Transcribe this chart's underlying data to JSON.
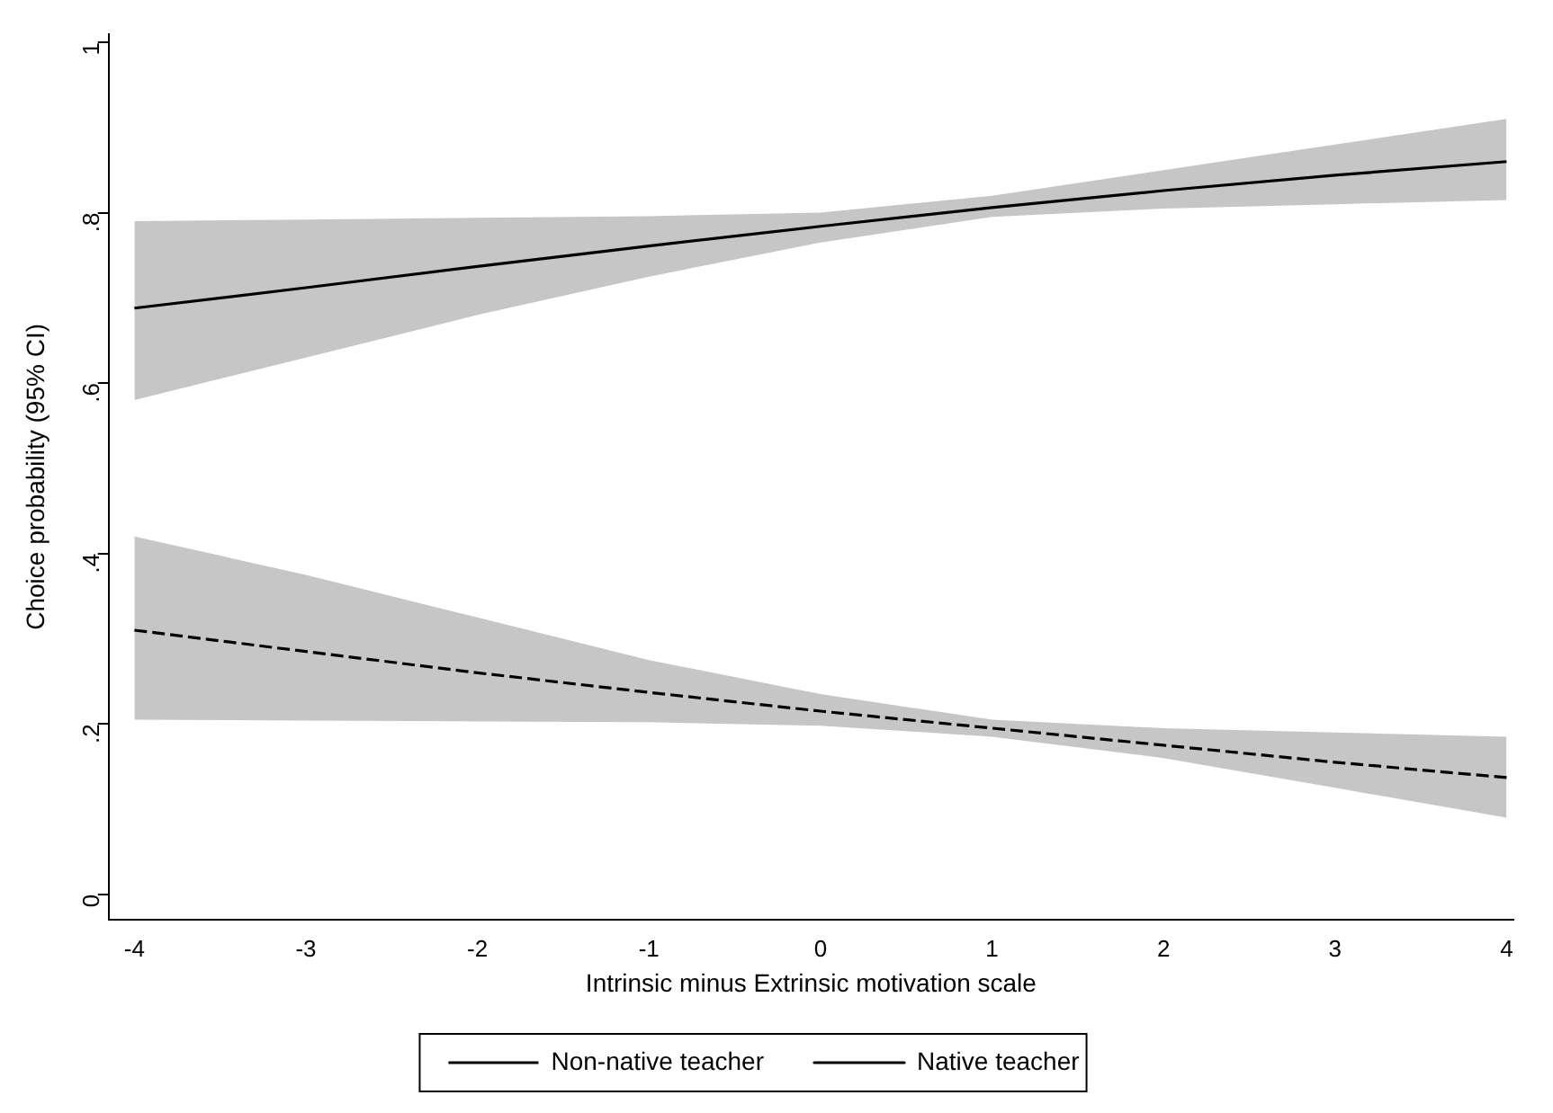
{
  "chart_data": {
    "type": "line",
    "xlabel": "Intrinsic minus Extrinsic motivation scale",
    "ylabel": "Choice probability (95% CI)",
    "x": [
      -4,
      -3,
      -2,
      -1,
      0,
      1,
      2,
      3,
      4
    ],
    "series": [
      {
        "name": "Non-native teacher",
        "color": "#000000",
        "line_style": "dashed",
        "values": [
          0.31,
          0.285,
          0.26,
          0.237,
          0.215,
          0.195,
          0.175,
          0.155,
          0.137
        ],
        "lower": [
          0.205,
          0.204,
          0.203,
          0.202,
          0.198,
          0.185,
          0.16,
          0.125,
          0.09
        ],
        "upper": [
          0.42,
          0.375,
          0.325,
          0.275,
          0.235,
          0.205,
          0.195,
          0.19,
          0.185
        ]
      },
      {
        "name": "Native teacher",
        "color": "#000000",
        "line_style": "solid",
        "values": [
          0.688,
          0.712,
          0.737,
          0.761,
          0.784,
          0.806,
          0.826,
          0.844,
          0.86
        ],
        "lower": [
          0.58,
          0.63,
          0.68,
          0.725,
          0.765,
          0.795,
          0.805,
          0.81,
          0.815
        ],
        "upper": [
          0.79,
          0.792,
          0.794,
          0.796,
          0.8,
          0.82,
          0.85,
          0.88,
          0.91
        ]
      }
    ],
    "xlim": [
      -4.15,
      4.04
    ],
    "xticks": [
      -4,
      -3,
      -2,
      -1,
      0,
      1,
      2,
      3,
      4
    ],
    "ylim": [
      -0.03,
      1.01
    ],
    "yticks": [
      {
        "value": 0,
        "label": "0"
      },
      {
        "value": 0.2,
        "label": ".2"
      },
      {
        "value": 0.4,
        "label": ".4"
      },
      {
        "value": 0.6,
        "label": ".6"
      },
      {
        "value": 0.8,
        "label": ".8"
      },
      {
        "value": 1,
        "label": "1"
      }
    ],
    "grid": false,
    "legend": "bottom",
    "marker": "none"
  }
}
